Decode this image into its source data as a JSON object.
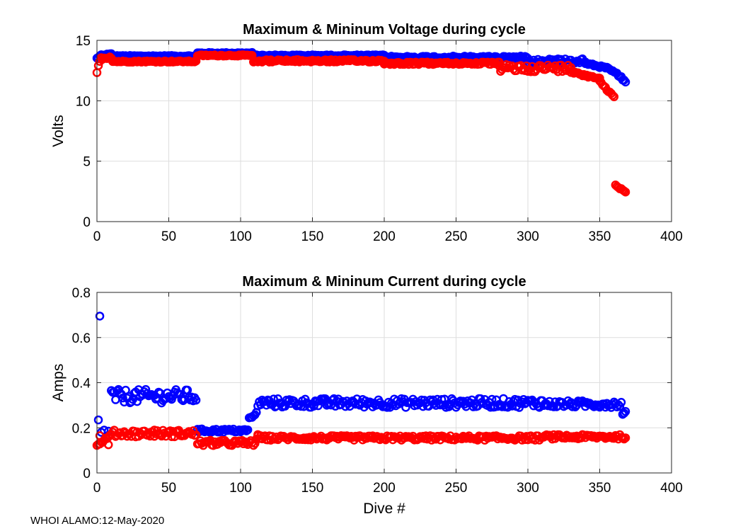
{
  "footer": "WHOI ALAMO:12-May-2020",
  "colors": {
    "max": "#0000ff",
    "min": "#ff0000",
    "grid": "#dedede",
    "axis": "#262626"
  },
  "chart_data": [
    {
      "type": "scatter",
      "title": "Maximum & Mininum Voltage during cycle",
      "xlabel": "",
      "ylabel": "Volts",
      "xlim": [
        0,
        400
      ],
      "ylim": [
        0,
        15
      ],
      "xticks": [
        0,
        50,
        100,
        150,
        200,
        250,
        300,
        350,
        400
      ],
      "yticks": [
        0,
        5,
        10,
        15
      ],
      "grid": true,
      "series": [
        {
          "name": "Maximum",
          "color": "#0000ff",
          "segments": [
            {
              "from": 0,
              "to": 1,
              "levels": [
                13.5,
                13.6
              ]
            },
            {
              "from": 2,
              "to": 10,
              "levels": [
                13.7,
                13.85
              ]
            },
            {
              "from": 11,
              "to": 69,
              "levels": [
                13.65,
                13.75
              ]
            },
            {
              "from": 70,
              "to": 108,
              "levels": [
                13.9,
                14.0
              ]
            },
            {
              "from": 109,
              "to": 200,
              "levels": [
                13.8,
                13.7
              ]
            },
            {
              "from": 200,
              "to": 300,
              "levels": [
                13.7,
                13.5
              ]
            },
            {
              "from": 300,
              "to": 340,
              "levels": [
                13.5,
                13.1
              ]
            },
            {
              "from": 340,
              "to": 355,
              "levels": [
                13.1,
                12.7
              ]
            },
            {
              "from": 355,
              "to": 365,
              "levels": [
                12.7,
                12.0
              ]
            },
            {
              "from": 365,
              "to": 368,
              "levels": [
                11.9,
                11.6
              ]
            }
          ]
        },
        {
          "name": "Minimum",
          "color": "#ff0000",
          "segments": [
            {
              "from": 0,
              "to": 2,
              "levels": [
                12.4,
                13.3
              ]
            },
            {
              "from": 3,
              "to": 10,
              "levels": [
                13.5,
                13.6
              ]
            },
            {
              "from": 11,
              "to": 69,
              "levels": [
                13.2,
                13.3
              ]
            },
            {
              "from": 70,
              "to": 108,
              "levels": [
                13.7,
                13.8
              ]
            },
            {
              "from": 109,
              "to": 200,
              "levels": [
                13.4,
                13.2
              ]
            },
            {
              "from": 200,
              "to": 280,
              "levels": [
                13.2,
                13.0
              ]
            },
            {
              "from": 280,
              "to": 330,
              "levels": [
                13.0,
                12.4
              ]
            },
            {
              "from": 330,
              "to": 350,
              "levels": [
                12.4,
                11.8
              ]
            },
            {
              "from": 350,
              "to": 360,
              "levels": [
                11.6,
                10.3
              ]
            },
            {
              "from": 361,
              "to": 368,
              "levels": [
                3.0,
                2.4
              ]
            }
          ]
        }
      ]
    },
    {
      "type": "scatter",
      "title": "Maximum & Mininum Current during cycle",
      "xlabel": "Dive #",
      "ylabel": "Amps",
      "xlim": [
        0,
        400
      ],
      "ylim": [
        0,
        0.8
      ],
      "xticks": [
        0,
        50,
        100,
        150,
        200,
        250,
        300,
        350,
        400
      ],
      "yticks": [
        0,
        0.2,
        0.4,
        0.6,
        0.8
      ],
      "grid": true,
      "series": [
        {
          "name": "Maximum",
          "color": "#0000ff",
          "points": [
            [
              1,
              0.235
            ],
            [
              2,
              0.695
            ],
            [
              3,
              0.18
            ],
            [
              5,
              0.19
            ],
            [
              8,
              0.185
            ],
            [
              10,
              0.365
            ]
          ],
          "segments": [
            {
              "from": 11,
              "to": 69,
              "levels": [
                0.31,
                0.37
              ]
            },
            {
              "from": 70,
              "to": 105,
              "levels": [
                0.18,
                0.195
              ]
            },
            {
              "from": 106,
              "to": 111,
              "levels": [
                0.24,
                0.265
              ]
            },
            {
              "from": 112,
              "to": 310,
              "levels": [
                0.29,
                0.33
              ]
            },
            {
              "from": 311,
              "to": 365,
              "levels": [
                0.29,
                0.32
              ]
            },
            {
              "from": 366,
              "to": 368,
              "levels": [
                0.255,
                0.27
              ]
            }
          ]
        },
        {
          "name": "Minimum",
          "color": "#ff0000",
          "segments": [
            {
              "from": 0,
              "to": 10,
              "levels": [
                0.12,
                0.17
              ]
            },
            {
              "from": 11,
              "to": 69,
              "levels": [
                0.16,
                0.19
              ]
            },
            {
              "from": 70,
              "to": 110,
              "levels": [
                0.12,
                0.145
              ]
            },
            {
              "from": 111,
              "to": 310,
              "levels": [
                0.145,
                0.165
              ]
            },
            {
              "from": 311,
              "to": 368,
              "levels": [
                0.15,
                0.17
              ]
            }
          ],
          "points": [
            [
              2,
              0.165
            ],
            [
              8,
              0.125
            ],
            [
              40,
              0.19
            ],
            [
              112,
              0.17
            ]
          ]
        }
      ]
    }
  ]
}
